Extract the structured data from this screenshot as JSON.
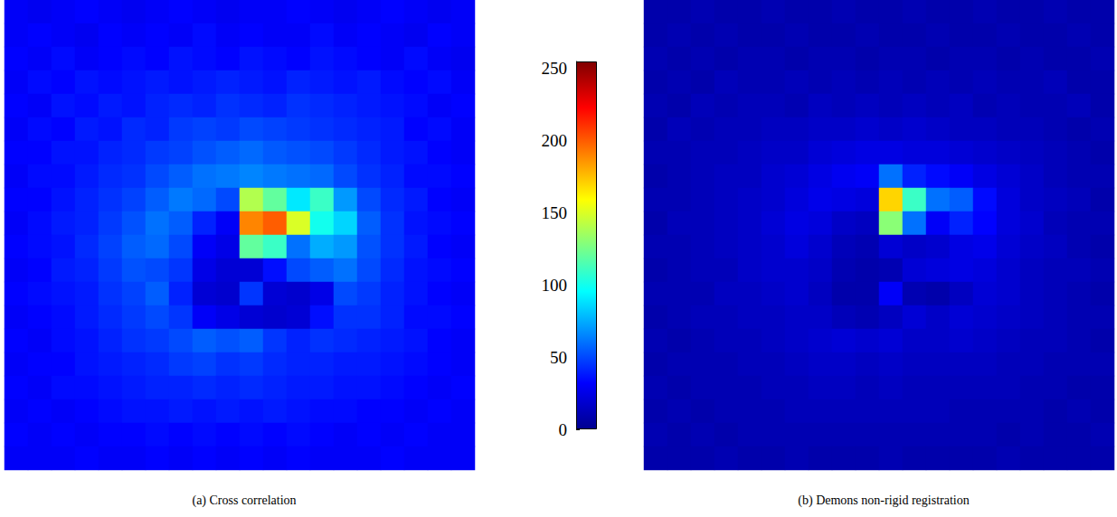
{
  "chart_data": {
    "type": "heatmap",
    "tick_labels": false,
    "colorbar": {
      "range": [
        0,
        255
      ],
      "ticks": [
        0,
        50,
        100,
        150,
        200,
        250
      ]
    },
    "panels": [
      {
        "caption": "(a) Cross correlation",
        "cells": [
          [
            30,
            28,
            30,
            32,
            30,
            28,
            30,
            32,
            30,
            28,
            30,
            30,
            32,
            30,
            28,
            30,
            32,
            30,
            28,
            30
          ],
          [
            30,
            32,
            30,
            28,
            32,
            30,
            32,
            30,
            34,
            30,
            32,
            30,
            30,
            34,
            30,
            32,
            30,
            28,
            32,
            30
          ],
          [
            32,
            30,
            34,
            30,
            32,
            34,
            32,
            36,
            34,
            32,
            36,
            34,
            32,
            36,
            34,
            32,
            30,
            34,
            30,
            28
          ],
          [
            30,
            34,
            32,
            36,
            34,
            36,
            38,
            36,
            38,
            40,
            38,
            36,
            40,
            38,
            36,
            38,
            34,
            32,
            34,
            30
          ],
          [
            32,
            30,
            36,
            34,
            38,
            36,
            40,
            42,
            40,
            44,
            42,
            40,
            44,
            42,
            40,
            38,
            36,
            34,
            30,
            32
          ],
          [
            30,
            34,
            32,
            38,
            36,
            42,
            40,
            46,
            48,
            46,
            50,
            48,
            46,
            44,
            42,
            40,
            38,
            32,
            34,
            30
          ],
          [
            32,
            32,
            36,
            36,
            40,
            42,
            46,
            48,
            52,
            55,
            58,
            54,
            52,
            50,
            46,
            42,
            38,
            36,
            32,
            30
          ],
          [
            30,
            34,
            34,
            38,
            42,
            44,
            50,
            55,
            60,
            62,
            65,
            62,
            60,
            58,
            50,
            44,
            40,
            34,
            34,
            32
          ],
          [
            32,
            32,
            36,
            40,
            44,
            48,
            55,
            62,
            58,
            50,
            140,
            120,
            90,
            110,
            70,
            50,
            42,
            38,
            32,
            30
          ],
          [
            30,
            34,
            38,
            40,
            46,
            52,
            60,
            55,
            40,
            30,
            190,
            200,
            150,
            100,
            85,
            55,
            44,
            36,
            34,
            32
          ],
          [
            32,
            34,
            36,
            42,
            48,
            55,
            58,
            50,
            30,
            25,
            120,
            110,
            60,
            75,
            70,
            52,
            44,
            38,
            32,
            30
          ],
          [
            30,
            32,
            38,
            40,
            46,
            52,
            50,
            45,
            25,
            20,
            20,
            35,
            50,
            55,
            60,
            50,
            42,
            36,
            34,
            32
          ],
          [
            32,
            34,
            36,
            38,
            44,
            48,
            55,
            40,
            20,
            18,
            45,
            20,
            18,
            25,
            50,
            46,
            40,
            36,
            32,
            30
          ],
          [
            30,
            32,
            34,
            38,
            42,
            46,
            50,
            45,
            30,
            25,
            20,
            18,
            20,
            35,
            44,
            44,
            40,
            34,
            34,
            32
          ],
          [
            32,
            30,
            34,
            36,
            40,
            44,
            46,
            50,
            55,
            52,
            55,
            45,
            40,
            44,
            42,
            40,
            38,
            36,
            32,
            30
          ],
          [
            30,
            32,
            32,
            36,
            38,
            40,
            42,
            46,
            48,
            44,
            46,
            42,
            40,
            40,
            38,
            38,
            36,
            34,
            32,
            30
          ],
          [
            32,
            30,
            34,
            34,
            36,
            38,
            40,
            40,
            42,
            40,
            42,
            40,
            38,
            38,
            36,
            36,
            34,
            32,
            30,
            32
          ],
          [
            30,
            32,
            30,
            32,
            34,
            36,
            36,
            38,
            36,
            38,
            36,
            38,
            36,
            34,
            34,
            32,
            32,
            30,
            32,
            30
          ],
          [
            32,
            30,
            32,
            30,
            32,
            32,
            34,
            32,
            34,
            32,
            34,
            32,
            34,
            32,
            30,
            32,
            30,
            32,
            30,
            30
          ],
          [
            30,
            30,
            30,
            32,
            30,
            30,
            32,
            30,
            32,
            30,
            32,
            30,
            32,
            30,
            30,
            30,
            32,
            30,
            30,
            30
          ]
        ]
      },
      {
        "caption": "(b) Demons non-rigid registration",
        "cells": [
          [
            8,
            8,
            10,
            8,
            8,
            10,
            8,
            8,
            10,
            8,
            8,
            10,
            8,
            8,
            10,
            8,
            8,
            10,
            8,
            8
          ],
          [
            8,
            10,
            8,
            10,
            8,
            8,
            10,
            8,
            8,
            10,
            8,
            8,
            10,
            8,
            8,
            10,
            8,
            8,
            10,
            8
          ],
          [
            10,
            8,
            10,
            8,
            10,
            10,
            8,
            10,
            10,
            8,
            10,
            10,
            8,
            10,
            10,
            8,
            10,
            8,
            8,
            10
          ],
          [
            8,
            10,
            8,
            12,
            10,
            10,
            12,
            10,
            12,
            10,
            12,
            10,
            12,
            10,
            12,
            10,
            10,
            12,
            8,
            8
          ],
          [
            10,
            8,
            12,
            10,
            12,
            12,
            10,
            14,
            12,
            14,
            12,
            14,
            12,
            14,
            10,
            12,
            10,
            10,
            12,
            8
          ],
          [
            8,
            12,
            10,
            12,
            12,
            14,
            14,
            16,
            16,
            18,
            16,
            18,
            16,
            14,
            14,
            12,
            12,
            10,
            8,
            10
          ],
          [
            10,
            10,
            12,
            12,
            14,
            16,
            16,
            20,
            22,
            24,
            24,
            22,
            22,
            20,
            18,
            16,
            14,
            12,
            10,
            8
          ],
          [
            8,
            10,
            12,
            14,
            14,
            18,
            20,
            24,
            28,
            30,
            60,
            40,
            34,
            30,
            24,
            20,
            16,
            12,
            10,
            10
          ],
          [
            10,
            10,
            12,
            14,
            16,
            18,
            22,
            26,
            24,
            22,
            170,
            110,
            60,
            55,
            34,
            22,
            16,
            14,
            12,
            8
          ],
          [
            8,
            12,
            12,
            14,
            16,
            20,
            24,
            22,
            16,
            14,
            130,
            60,
            30,
            40,
            32,
            22,
            18,
            12,
            10,
            10
          ],
          [
            10,
            10,
            12,
            14,
            16,
            18,
            22,
            18,
            12,
            10,
            20,
            16,
            18,
            24,
            26,
            20,
            16,
            14,
            10,
            8
          ],
          [
            8,
            10,
            12,
            12,
            16,
            18,
            18,
            16,
            10,
            8,
            10,
            20,
            22,
            24,
            22,
            18,
            14,
            12,
            12,
            10
          ],
          [
            10,
            10,
            10,
            14,
            14,
            16,
            18,
            14,
            8,
            8,
            30,
            10,
            8,
            14,
            20,
            18,
            14,
            12,
            10,
            8
          ],
          [
            8,
            10,
            12,
            12,
            14,
            14,
            16,
            16,
            12,
            10,
            14,
            20,
            16,
            20,
            18,
            16,
            14,
            12,
            10,
            10
          ],
          [
            10,
            8,
            10,
            12,
            12,
            14,
            16,
            18,
            20,
            18,
            20,
            16,
            16,
            18,
            16,
            14,
            12,
            12,
            10,
            8
          ],
          [
            8,
            10,
            10,
            10,
            12,
            12,
            14,
            16,
            16,
            14,
            16,
            14,
            14,
            14,
            14,
            12,
            12,
            10,
            10,
            10
          ],
          [
            10,
            8,
            10,
            10,
            10,
            12,
            12,
            14,
            14,
            12,
            14,
            12,
            12,
            12,
            12,
            12,
            10,
            10,
            8,
            8
          ],
          [
            8,
            10,
            8,
            10,
            10,
            10,
            12,
            12,
            12,
            12,
            12,
            12,
            12,
            10,
            10,
            10,
            10,
            8,
            10,
            8
          ],
          [
            10,
            8,
            10,
            8,
            10,
            10,
            10,
            10,
            10,
            10,
            10,
            10,
            10,
            10,
            10,
            8,
            10,
            8,
            8,
            10
          ],
          [
            8,
            8,
            8,
            10,
            8,
            8,
            10,
            8,
            8,
            8,
            10,
            8,
            8,
            8,
            8,
            10,
            8,
            8,
            8,
            8
          ]
        ]
      }
    ]
  }
}
